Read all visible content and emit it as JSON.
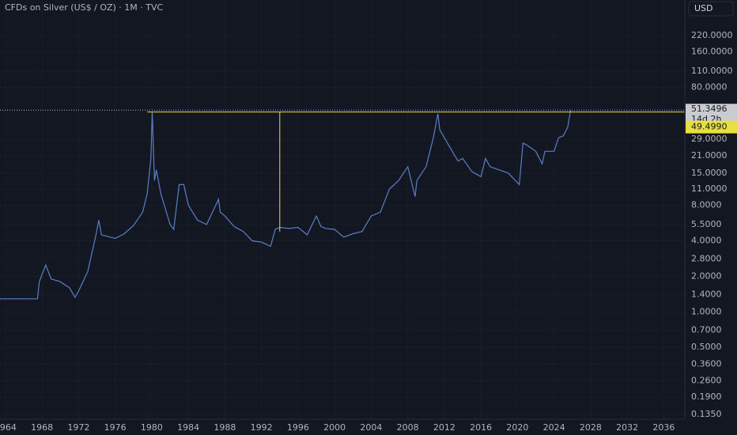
{
  "chart_data": {
    "type": "line",
    "title": "CFDs on Silver (US$ / OZ) · 1M · TVC",
    "currency": "USD",
    "log_scale": true,
    "grid": true,
    "series": [
      {
        "name": "Silver",
        "color": "#5b7ec7",
        "x": [
          1963.4,
          1967.5,
          1967.7,
          1968.4,
          1969,
          1970,
          1971,
          1971.6,
          1972,
          1973,
          1973.9,
          1974.2,
          1974.5,
          1975,
          1976,
          1977,
          1978,
          1979,
          1979.5,
          1979.9,
          1980.05,
          1980.3,
          1980.5,
          1981,
          1982,
          1982.4,
          1983,
          1983.5,
          1984,
          1985,
          1986,
          1987.3,
          1987.5,
          1988,
          1989,
          1990,
          1991,
          1992,
          1993,
          1993.5,
          1994,
          1995,
          1996,
          1997,
          1998,
          1998.5,
          1999,
          2000,
          2001,
          2002,
          2003,
          2004,
          2005,
          2006,
          2007,
          2008,
          2008.8,
          2009,
          2010,
          2010.8,
          2011.3,
          2011.5,
          2012,
          2013,
          2013.5,
          2014,
          2015,
          2016,
          2016.5,
          2017,
          2018,
          2019,
          2020.2,
          2020.6,
          2021,
          2022,
          2022.7,
          2023,
          2024,
          2024.5,
          2025,
          2025.5,
          2025.8
        ],
        "values": [
          1.29,
          1.29,
          1.8,
          2.5,
          1.9,
          1.8,
          1.6,
          1.33,
          1.5,
          2.2,
          4.5,
          6.0,
          4.5,
          4.4,
          4.2,
          4.6,
          5.4,
          7,
          10,
          20,
          49,
          13,
          16,
          10,
          5.5,
          5,
          12,
          12,
          8,
          6,
          5.5,
          9,
          7,
          6.5,
          5.3,
          4.8,
          4,
          3.9,
          3.6,
          5,
          5.2,
          5.1,
          5.2,
          4.5,
          6.5,
          5.3,
          5.1,
          5.0,
          4.3,
          4.6,
          4.8,
          6.5,
          7,
          11,
          13,
          17,
          9.5,
          13,
          17,
          30,
          48,
          35,
          30,
          22,
          19,
          20,
          15.5,
          14,
          20,
          17,
          16,
          15,
          12,
          27,
          26,
          23,
          18,
          23,
          23,
          30,
          31,
          37,
          51.3496
        ]
      }
    ],
    "xlim": [
      1963.4,
      2038.3
    ],
    "xticks": [
      1964,
      1968,
      1972,
      1976,
      1980,
      1984,
      1988,
      1992,
      1996,
      2000,
      2004,
      2008,
      2012,
      2016,
      2020,
      2024,
      2028,
      2032,
      2036
    ],
    "ylim": [
      0.123,
      441
    ],
    "yticks": [
      {
        "value": 220,
        "label": "220.0000"
      },
      {
        "value": 160,
        "label": "160.0000"
      },
      {
        "value": 110,
        "label": "110.0000"
      },
      {
        "value": 80,
        "label": "80.0000"
      },
      {
        "value": 29,
        "label": "29.0000"
      },
      {
        "value": 21,
        "label": "21.0000"
      },
      {
        "value": 15,
        "label": "15.0000"
      },
      {
        "value": 11,
        "label": "11.0000"
      },
      {
        "value": 8,
        "label": "8.0000"
      },
      {
        "value": 5.5,
        "label": "5.5000"
      },
      {
        "value": 4,
        "label": "4.0000"
      },
      {
        "value": 2.8,
        "label": "2.8000"
      },
      {
        "value": 2,
        "label": "2.0000"
      },
      {
        "value": 1.4,
        "label": "1.4000"
      },
      {
        "value": 1,
        "label": "1.0000"
      },
      {
        "value": 0.7,
        "label": "0.7000"
      },
      {
        "value": 0.5,
        "label": "0.5000"
      },
      {
        "value": 0.36,
        "label": "0.3600"
      },
      {
        "value": 0.26,
        "label": "0.2600"
      },
      {
        "value": 0.19,
        "label": "0.1900"
      },
      {
        "value": 0.135,
        "label": "0.1350"
      }
    ],
    "price_line": {
      "value": 51.3496,
      "label": "51.3496",
      "countdown": "14d 2h"
    },
    "hline": {
      "value": 49.499,
      "label": "49.4990",
      "x_start": 1979.5,
      "color": "#e6e040"
    },
    "vline": {
      "x": 1994,
      "from": 49.499,
      "to": 4.8
    }
  }
}
